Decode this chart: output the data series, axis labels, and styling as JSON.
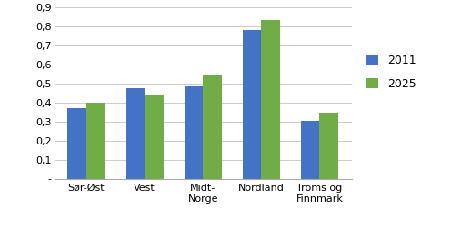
{
  "categories": [
    "Sør-Øst",
    "Vest",
    "Midt-\nNorge",
    "Nordland",
    "Troms og\nFinnmark"
  ],
  "values_2011": [
    0.37,
    0.475,
    0.485,
    0.78,
    0.305
  ],
  "values_2025": [
    0.4,
    0.44,
    0.545,
    0.83,
    0.345
  ],
  "color_2011": "#4472C4",
  "color_2025": "#70AD47",
  "legend_2011": "2011",
  "legend_2025": "2025",
  "ylim": [
    0,
    0.9
  ],
  "yticks": [
    0.0,
    0.1,
    0.2,
    0.3,
    0.4,
    0.5,
    0.6,
    0.7,
    0.8,
    0.9
  ],
  "ytick_labels": [
    "-",
    "0,1",
    "0,2",
    "0,3",
    "0,4",
    "0,5",
    "0,6",
    "0,7",
    "0,8",
    "0,9"
  ],
  "background_color": "#ffffff",
  "bar_width": 0.32,
  "legend_fontsize": 9,
  "tick_fontsize": 8,
  "xtick_fontsize": 8
}
